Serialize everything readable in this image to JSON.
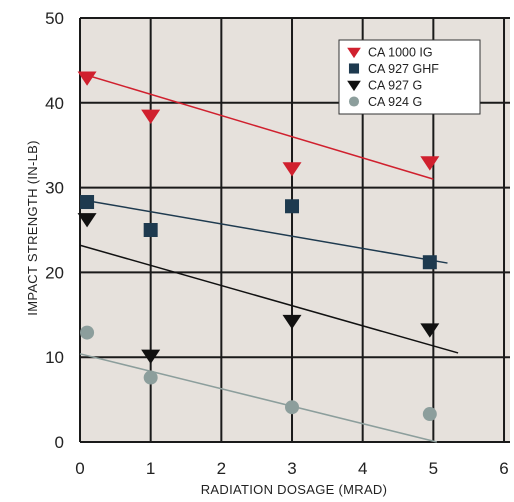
{
  "chart_data": {
    "type": "scatter",
    "title": "",
    "xlabel": "RADIATION DOSAGE (MRAD)",
    "ylabel": "IMPACT STRENGTH (IN-LB)",
    "xlim": [
      0,
      6
    ],
    "ylim": [
      0,
      50
    ],
    "xticks": [
      "0",
      "1",
      "2",
      "3",
      "4",
      "5",
      "6"
    ],
    "yticks": [
      "0",
      "10",
      "20",
      "30",
      "40",
      "50"
    ],
    "grid": true,
    "legend_position": "top-right",
    "plot_background": "#e6e1dc",
    "series": [
      {
        "name": "CA 1000 IG",
        "marker": "triangle-down",
        "color": "#d0202e",
        "points": [
          [
            0.1,
            43.0
          ],
          [
            1.0,
            38.5
          ],
          [
            3.0,
            32.3
          ],
          [
            4.95,
            33.0
          ]
        ],
        "trendline": [
          [
            0.0,
            43.5
          ],
          [
            5.0,
            31.0
          ]
        ]
      },
      {
        "name": "CA 927 GHF",
        "marker": "square",
        "color": "#1e3a4f",
        "points": [
          [
            0.1,
            28.3
          ],
          [
            1.0,
            25.0
          ],
          [
            3.0,
            27.8
          ],
          [
            4.95,
            21.2
          ]
        ],
        "trendline": [
          [
            0.0,
            28.6
          ],
          [
            5.2,
            21.1
          ]
        ]
      },
      {
        "name": "CA 927 G",
        "marker": "triangle-down",
        "color": "#111111",
        "points": [
          [
            0.1,
            26.3
          ],
          [
            1.0,
            10.2
          ],
          [
            3.0,
            14.3
          ],
          [
            4.95,
            13.3
          ]
        ],
        "trendline": [
          [
            0.0,
            23.2
          ],
          [
            5.35,
            10.5
          ]
        ]
      },
      {
        "name": "CA 924 G",
        "marker": "circle",
        "color": "#8c9e9c",
        "points": [
          [
            0.1,
            12.9
          ],
          [
            1.0,
            7.6
          ],
          [
            3.0,
            4.1
          ],
          [
            4.95,
            3.3
          ]
        ],
        "trendline": [
          [
            0.0,
            10.4
          ],
          [
            5.05,
            0.0
          ]
        ]
      }
    ]
  }
}
